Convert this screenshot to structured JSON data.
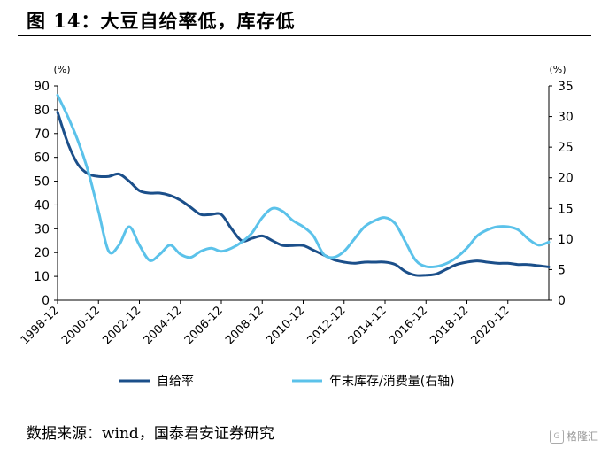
{
  "header": {
    "title": "图 14：大豆自给率低，库存低"
  },
  "footer": {
    "source": "数据来源：wind，国泰君安证券研究"
  },
  "watermark": {
    "text": "格隆汇",
    "icon": "G"
  },
  "colors": {
    "self_sufficiency": "#1b4f8a",
    "stock_ratio": "#5bc2ea"
  },
  "chart_data": {
    "type": "line",
    "y_left": {
      "unit": "(%)",
      "ylim": [
        0,
        90
      ],
      "ticks": [
        0,
        10,
        20,
        30,
        40,
        50,
        60,
        70,
        80,
        90
      ]
    },
    "y_right": {
      "unit": "(%)",
      "ylim": [
        0,
        35
      ],
      "ticks": [
        0,
        5,
        10,
        15,
        20,
        25,
        30,
        35
      ]
    },
    "x_ticks": [
      "1998-12",
      "2000-12",
      "2002-12",
      "2004-12",
      "2006-12",
      "2008-12",
      "2010-12",
      "2012-12",
      "2014-12",
      "2016-12",
      "2018-12",
      "2020-12"
    ],
    "x_range": [
      1998,
      2022
    ],
    "legend_position": "bottom",
    "grid": false,
    "series": [
      {
        "name": "自给率",
        "axis": "left",
        "color": "#1b4f8a",
        "x": [
          1998,
          1998.5,
          1999,
          1999.5,
          2000,
          2000.5,
          2001,
          2001.5,
          2002,
          2002.5,
          2003,
          2003.5,
          2004,
          2004.5,
          2005,
          2005.5,
          2006,
          2006.5,
          2007,
          2007.5,
          2008,
          2008.5,
          2009,
          2009.5,
          2010,
          2010.5,
          2011,
          2011.5,
          2012,
          2012.5,
          2013,
          2013.5,
          2014,
          2014.5,
          2015,
          2015.5,
          2016,
          2016.5,
          2017,
          2017.5,
          2018,
          2018.5,
          2019,
          2019.5,
          2020,
          2020.5,
          2021,
          2021.5,
          2022
        ],
        "values": [
          79,
          66,
          57,
          53,
          52,
          52,
          53,
          50,
          46,
          45,
          45,
          44,
          42,
          39,
          36,
          36,
          36,
          30,
          25,
          26,
          27,
          25,
          23,
          23,
          23,
          21,
          19,
          17,
          16,
          15.5,
          16,
          16,
          16,
          15,
          12,
          10.5,
          10.5,
          11,
          13,
          15,
          16,
          16.5,
          16,
          15.5,
          15.5,
          15,
          15,
          14.5,
          14
        ]
      },
      {
        "name": "年末库存/消费量(右轴)",
        "axis": "right",
        "color": "#5bc2ea",
        "x": [
          1998,
          1998.5,
          1999,
          1999.5,
          2000,
          2000.5,
          2001,
          2001.5,
          2002,
          2002.5,
          2003,
          2003.5,
          2004,
          2004.5,
          2005,
          2005.5,
          2006,
          2006.5,
          2007,
          2007.5,
          2008,
          2008.5,
          2009,
          2009.5,
          2010,
          2010.5,
          2011,
          2011.5,
          2012,
          2012.5,
          2013,
          2013.5,
          2014,
          2014.5,
          2015,
          2015.5,
          2016,
          2016.5,
          2017,
          2017.5,
          2018,
          2018.5,
          2019,
          2019.5,
          2020,
          2020.5,
          2021,
          2021.5,
          2022
        ],
        "values": [
          33.5,
          30,
          26,
          21,
          14.5,
          8,
          9,
          12,
          9,
          6.5,
          7.5,
          9,
          7.5,
          7,
          8,
          8.5,
          8,
          8.5,
          9.5,
          11,
          13.5,
          15,
          14.5,
          13,
          12,
          10.5,
          7.5,
          7,
          8,
          10,
          12,
          13,
          13.5,
          12.5,
          9.5,
          6.5,
          5.5,
          5.5,
          6,
          7,
          8.5,
          10.5,
          11.5,
          12,
          12,
          11.5,
          10,
          9,
          9.5
        ]
      }
    ]
  }
}
